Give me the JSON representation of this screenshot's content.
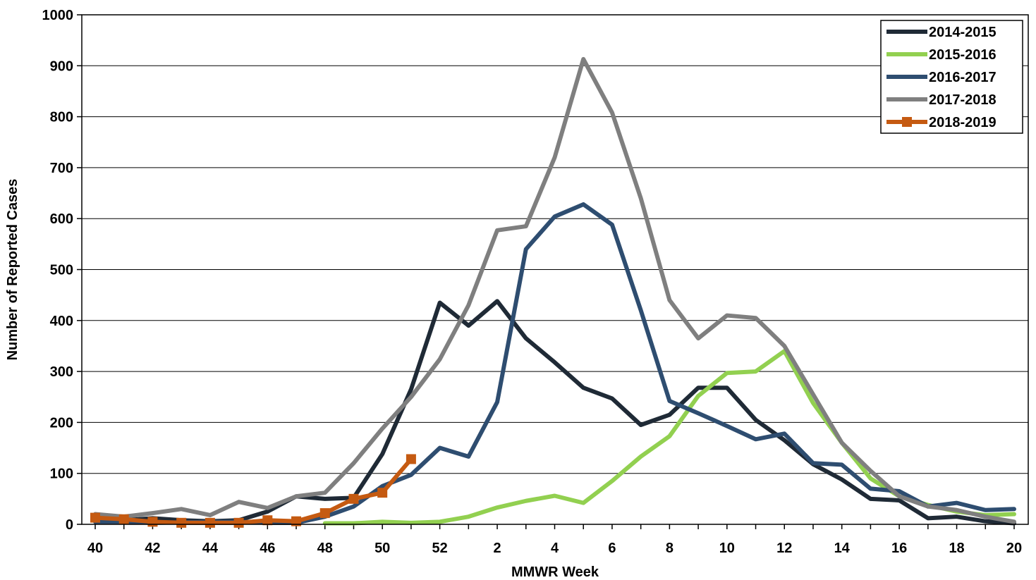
{
  "chart_data": {
    "type": "line",
    "title": "",
    "xlabel": "MMWR Week",
    "ylabel": "Number of Reported Cases",
    "ylim": [
      0,
      1000
    ],
    "yticks": [
      "0",
      "100",
      "200",
      "300",
      "400",
      "500",
      "600",
      "700",
      "800",
      "900",
      "1000"
    ],
    "xticks_shown": [
      "40",
      "42",
      "44",
      "46",
      "48",
      "50",
      "52",
      "2",
      "4",
      "6",
      "8",
      "10",
      "12",
      "14",
      "16",
      "18",
      "20"
    ],
    "categories": [
      "40",
      "41",
      "42",
      "43",
      "44",
      "45",
      "46",
      "47",
      "48",
      "49",
      "50",
      "51",
      "52",
      "1",
      "2",
      "3",
      "4",
      "5",
      "6",
      "7",
      "8",
      "9",
      "10",
      "11",
      "12",
      "13",
      "14",
      "15",
      "16",
      "17",
      "18",
      "19",
      "20"
    ],
    "grid": "horizontal",
    "legend_position": "top-right",
    "series": [
      {
        "name": "2014-2015",
        "color": "#1f2a36",
        "marker": "none",
        "values": [
          5,
          8,
          12,
          8,
          6,
          8,
          25,
          55,
          50,
          52,
          138,
          265,
          435,
          390,
          438,
          365,
          318,
          268,
          247,
          195,
          215,
          268,
          268,
          205,
          165,
          118,
          88,
          50,
          47,
          12,
          15,
          6,
          2
        ]
      },
      {
        "name": "2015-2016",
        "color": "#92d050",
        "marker": "none",
        "values": [
          null,
          null,
          null,
          null,
          null,
          null,
          null,
          null,
          2,
          2,
          5,
          3,
          5,
          15,
          33,
          46,
          56,
          42,
          85,
          133,
          173,
          252,
          297,
          300,
          340,
          238,
          160,
          90,
          55,
          38,
          25,
          18,
          20
        ]
      },
      {
        "name": "2016-2017",
        "color": "#2e4d70",
        "marker": "none",
        "values": [
          5,
          5,
          3,
          4,
          5,
          5,
          3,
          3,
          15,
          35,
          75,
          97,
          150,
          133,
          240,
          540,
          604,
          628,
          588,
          420,
          242,
          218,
          193,
          167,
          178,
          120,
          117,
          70,
          65,
          35,
          42,
          28,
          30
        ]
      },
      {
        "name": "2017-2018",
        "color": "#7f7f7f",
        "marker": "none",
        "values": [
          20,
          15,
          22,
          30,
          18,
          44,
          32,
          55,
          62,
          120,
          188,
          250,
          324,
          430,
          577,
          585,
          720,
          913,
          808,
          640,
          440,
          365,
          410,
          405,
          350,
          255,
          160,
          105,
          55,
          35,
          28,
          15,
          5
        ]
      },
      {
        "name": "2018-2019",
        "color": "#c55a11",
        "marker": "square",
        "values": [
          13,
          10,
          5,
          3,
          3,
          3,
          8,
          6,
          22,
          50,
          62,
          128,
          null,
          null,
          null,
          null,
          null,
          null,
          null,
          null,
          null,
          null,
          null,
          null,
          null,
          null,
          null,
          null,
          null,
          null,
          null,
          null,
          null
        ]
      }
    ]
  }
}
